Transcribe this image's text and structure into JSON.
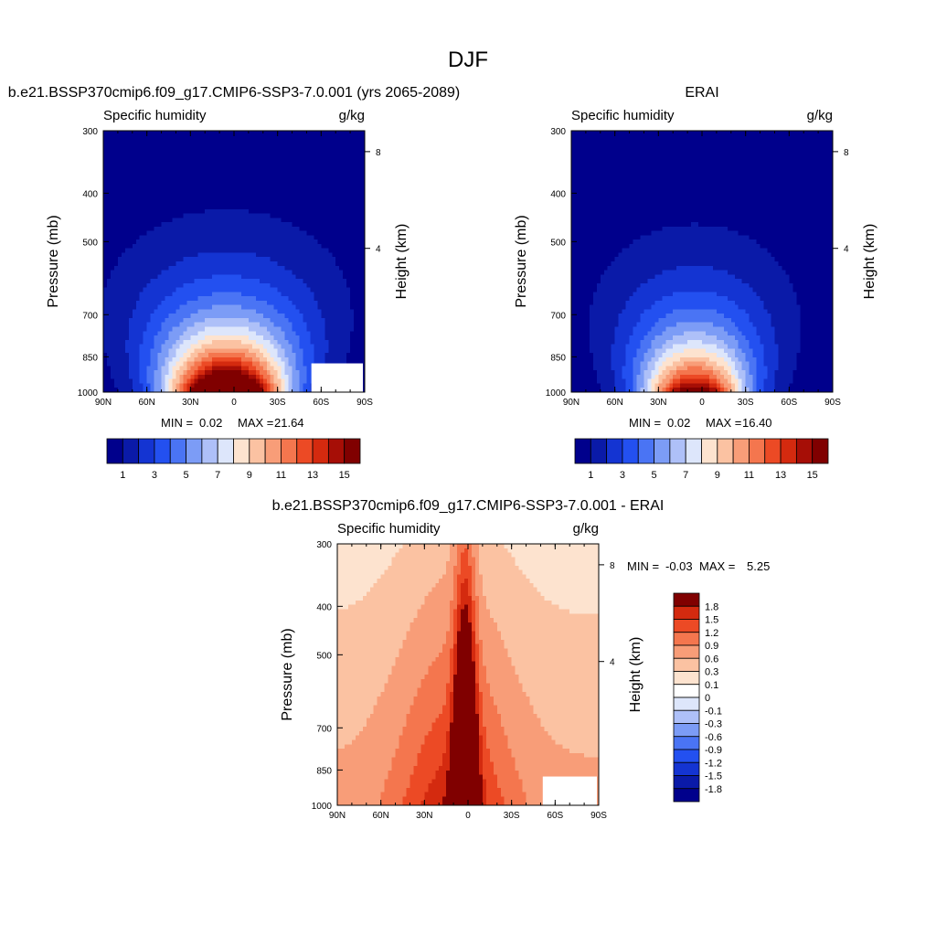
{
  "figure_title": "DJF",
  "chart_data": [
    {
      "type": "heatmap",
      "title": "b.e21.BSSP370cmip6.f09_g17.CMIP6-SSP3-7.0.001 (yrs 2065-2089)",
      "variable": "Specific humidity",
      "units": "g/kg",
      "xlabel": "",
      "ylabel": "Pressure (mb)",
      "ylabel_right": "Height (km)",
      "x_ticks": [
        "90N",
        "60N",
        "30N",
        "0",
        "30S",
        "60S",
        "90S"
      ],
      "y_ticks": [
        "300",
        "400",
        "500",
        "700",
        "850",
        "1000"
      ],
      "y_right_ticks": [
        "8",
        "4"
      ],
      "stats": {
        "min_label": "MIN =",
        "min": "0.02",
        "max_label": "MAX =",
        "max": "21.64"
      },
      "field": {
        "peak": 21.64,
        "surface_halfwidth_deg": 28,
        "top_halfwidth_deg": 78,
        "top_frac": 0.94
      },
      "colorbar": {
        "orientation": "horizontal",
        "labels": [
          "1",
          "3",
          "5",
          "7",
          "9",
          "11",
          "13",
          "15"
        ],
        "levels": [
          1,
          2,
          3,
          4,
          5,
          6,
          7,
          8,
          9,
          10,
          11,
          12,
          13,
          14,
          15,
          16
        ],
        "colors": [
          "#00008c",
          "#0a1aa8",
          "#1434d2",
          "#2350f0",
          "#4a74f4",
          "#7c9cf6",
          "#aec0f8",
          "#dde6fb",
          "#fde3cf",
          "#fbc2a2",
          "#f89d78",
          "#f4764e",
          "#ec4a25",
          "#d42a0f",
          "#a60e06",
          "#800000"
        ]
      }
    },
    {
      "type": "heatmap",
      "title": "ERAI",
      "variable": "Specific humidity",
      "units": "g/kg",
      "xlabel": "",
      "ylabel": "Pressure (mb)",
      "ylabel_right": "Height (km)",
      "x_ticks": [
        "90N",
        "60N",
        "30N",
        "0",
        "30S",
        "60S",
        "90S"
      ],
      "y_ticks": [
        "300",
        "400",
        "500",
        "700",
        "850",
        "1000"
      ],
      "y_right_ticks": [
        "8",
        "4"
      ],
      "stats": {
        "min_label": "MIN =",
        "min": "0.02",
        "max_label": "MAX =",
        "max": "16.40"
      },
      "field": {
        "peak": 16.4,
        "surface_halfwidth_deg": 25,
        "top_halfwidth_deg": 70,
        "top_frac": 0.84
      },
      "colorbar": {
        "orientation": "horizontal",
        "labels": [
          "1",
          "3",
          "5",
          "7",
          "9",
          "11",
          "13",
          "15"
        ],
        "levels": [
          1,
          2,
          3,
          4,
          5,
          6,
          7,
          8,
          9,
          10,
          11,
          12,
          13,
          14,
          15,
          16
        ],
        "colors": [
          "#00008c",
          "#0a1aa8",
          "#1434d2",
          "#2350f0",
          "#4a74f4",
          "#7c9cf6",
          "#aec0f8",
          "#dde6fb",
          "#fde3cf",
          "#fbc2a2",
          "#f89d78",
          "#f4764e",
          "#ec4a25",
          "#d42a0f",
          "#a60e06",
          "#800000"
        ]
      }
    },
    {
      "type": "heatmap",
      "title": "b.e21.BSSP370cmip6.f09_g17.CMIP6-SSP3-7.0.001 - ERAI",
      "variable": "Specific humidity",
      "units": "g/kg",
      "xlabel": "",
      "ylabel": "Pressure (mb)",
      "ylabel_right": "Height (km)",
      "x_ticks": [
        "90N",
        "60N",
        "30N",
        "0",
        "30S",
        "60S",
        "90S"
      ],
      "y_ticks": [
        "300",
        "400",
        "500",
        "700",
        "850",
        "1000"
      ],
      "y_right_ticks": [
        "8",
        "4"
      ],
      "stats": {
        "min_label": "MIN =",
        "min": "-0.03",
        "max_label": "MAX =",
        "max": "5.25"
      },
      "field": {
        "peak": 5.25,
        "background": 0.15
      },
      "colorbar": {
        "orientation": "vertical",
        "labels": [
          "1.8",
          "1.5",
          "1.2",
          "0.9",
          "0.6",
          "0.3",
          "0.1",
          "0",
          "-0.1",
          "-0.3",
          "-0.6",
          "-0.9",
          "-1.2",
          "-1.5",
          "-1.8"
        ],
        "levels": [
          -1.8,
          -1.5,
          -1.2,
          -0.9,
          -0.6,
          -0.3,
          -0.1,
          0,
          0.1,
          0.3,
          0.6,
          0.9,
          1.2,
          1.5,
          1.8
        ],
        "colors": [
          "#00008c",
          "#0a1aa8",
          "#1434d2",
          "#2350f0",
          "#4a74f4",
          "#7c9cf6",
          "#aec0f8",
          "#dde6fb",
          "#ffffff",
          "#fde3cf",
          "#fbc2a2",
          "#f89d78",
          "#f4764e",
          "#ec4a25",
          "#d42a0f",
          "#800000"
        ]
      }
    }
  ]
}
